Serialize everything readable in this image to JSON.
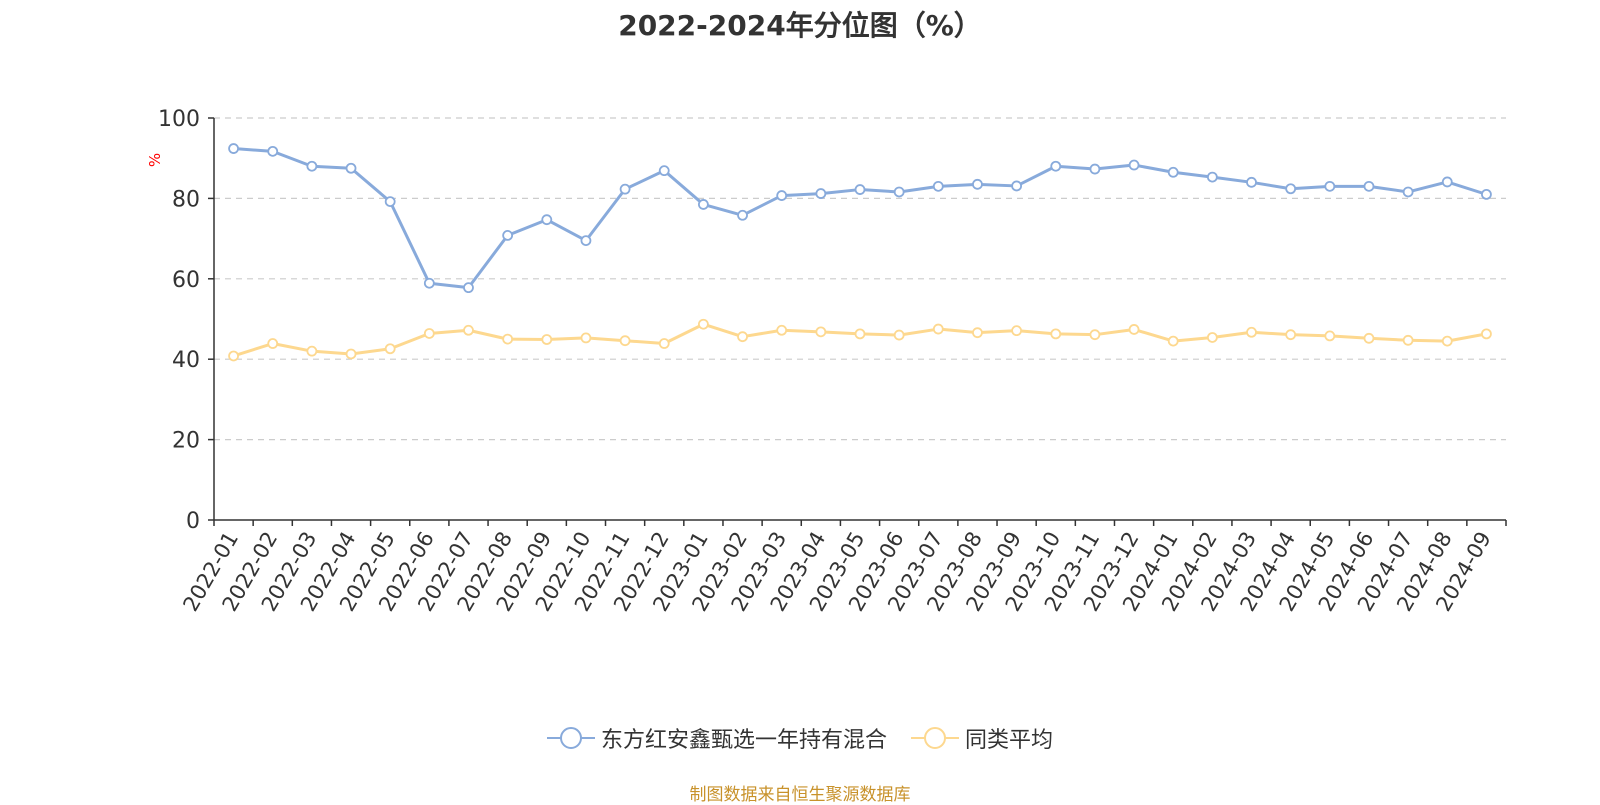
{
  "title": "2022-2024年分位图（%）",
  "source": "制图数据来自恒生聚源数据库",
  "colors": {
    "series1": "#88aadb",
    "series2": "#fdd88f",
    "grid": "#cccccc",
    "axis": "#333333",
    "ylabel": "#ff0000",
    "source": "#c8922b"
  },
  "chart_data": {
    "type": "line",
    "title": "2022-2024年分位图（%）",
    "ylabel": "%",
    "xlabel": "",
    "ylim": [
      0,
      100
    ],
    "yticks": [
      0,
      20,
      40,
      60,
      80,
      100
    ],
    "grid": true,
    "legend_position": "bottom",
    "categories": [
      "2022-01",
      "2022-02",
      "2022-03",
      "2022-04",
      "2022-05",
      "2022-06",
      "2022-07",
      "2022-08",
      "2022-09",
      "2022-10",
      "2022-11",
      "2022-12",
      "2023-01",
      "2023-02",
      "2023-03",
      "2023-04",
      "2023-05",
      "2023-06",
      "2023-07",
      "2023-08",
      "2023-09",
      "2023-10",
      "2023-11",
      "2023-12",
      "2024-01",
      "2024-02",
      "2024-03",
      "2024-04",
      "2024-05",
      "2024-06",
      "2024-07",
      "2024-08",
      "2024-09"
    ],
    "series": [
      {
        "name": "东方红安鑫甄选一年持有混合",
        "values": [
          92.4,
          91.7,
          88.0,
          87.5,
          79.2,
          58.9,
          57.8,
          70.8,
          74.7,
          69.5,
          82.3,
          86.9,
          78.5,
          75.8,
          80.7,
          81.2,
          82.2,
          81.6,
          83.0,
          83.5,
          83.1,
          88.0,
          87.3,
          88.3,
          86.5,
          85.3,
          84.0,
          82.4,
          83.0,
          83.0,
          81.6,
          84.1,
          81.0
        ]
      },
      {
        "name": "同类平均",
        "values": [
          40.8,
          43.9,
          42.0,
          41.3,
          42.6,
          46.4,
          47.2,
          45.0,
          44.9,
          45.3,
          44.6,
          43.9,
          48.7,
          45.6,
          47.2,
          46.8,
          46.3,
          46.0,
          47.5,
          46.6,
          47.1,
          46.3,
          46.1,
          47.4,
          44.5,
          45.4,
          46.7,
          46.1,
          45.8,
          45.2,
          44.7,
          44.5,
          46.3
        ]
      }
    ]
  }
}
